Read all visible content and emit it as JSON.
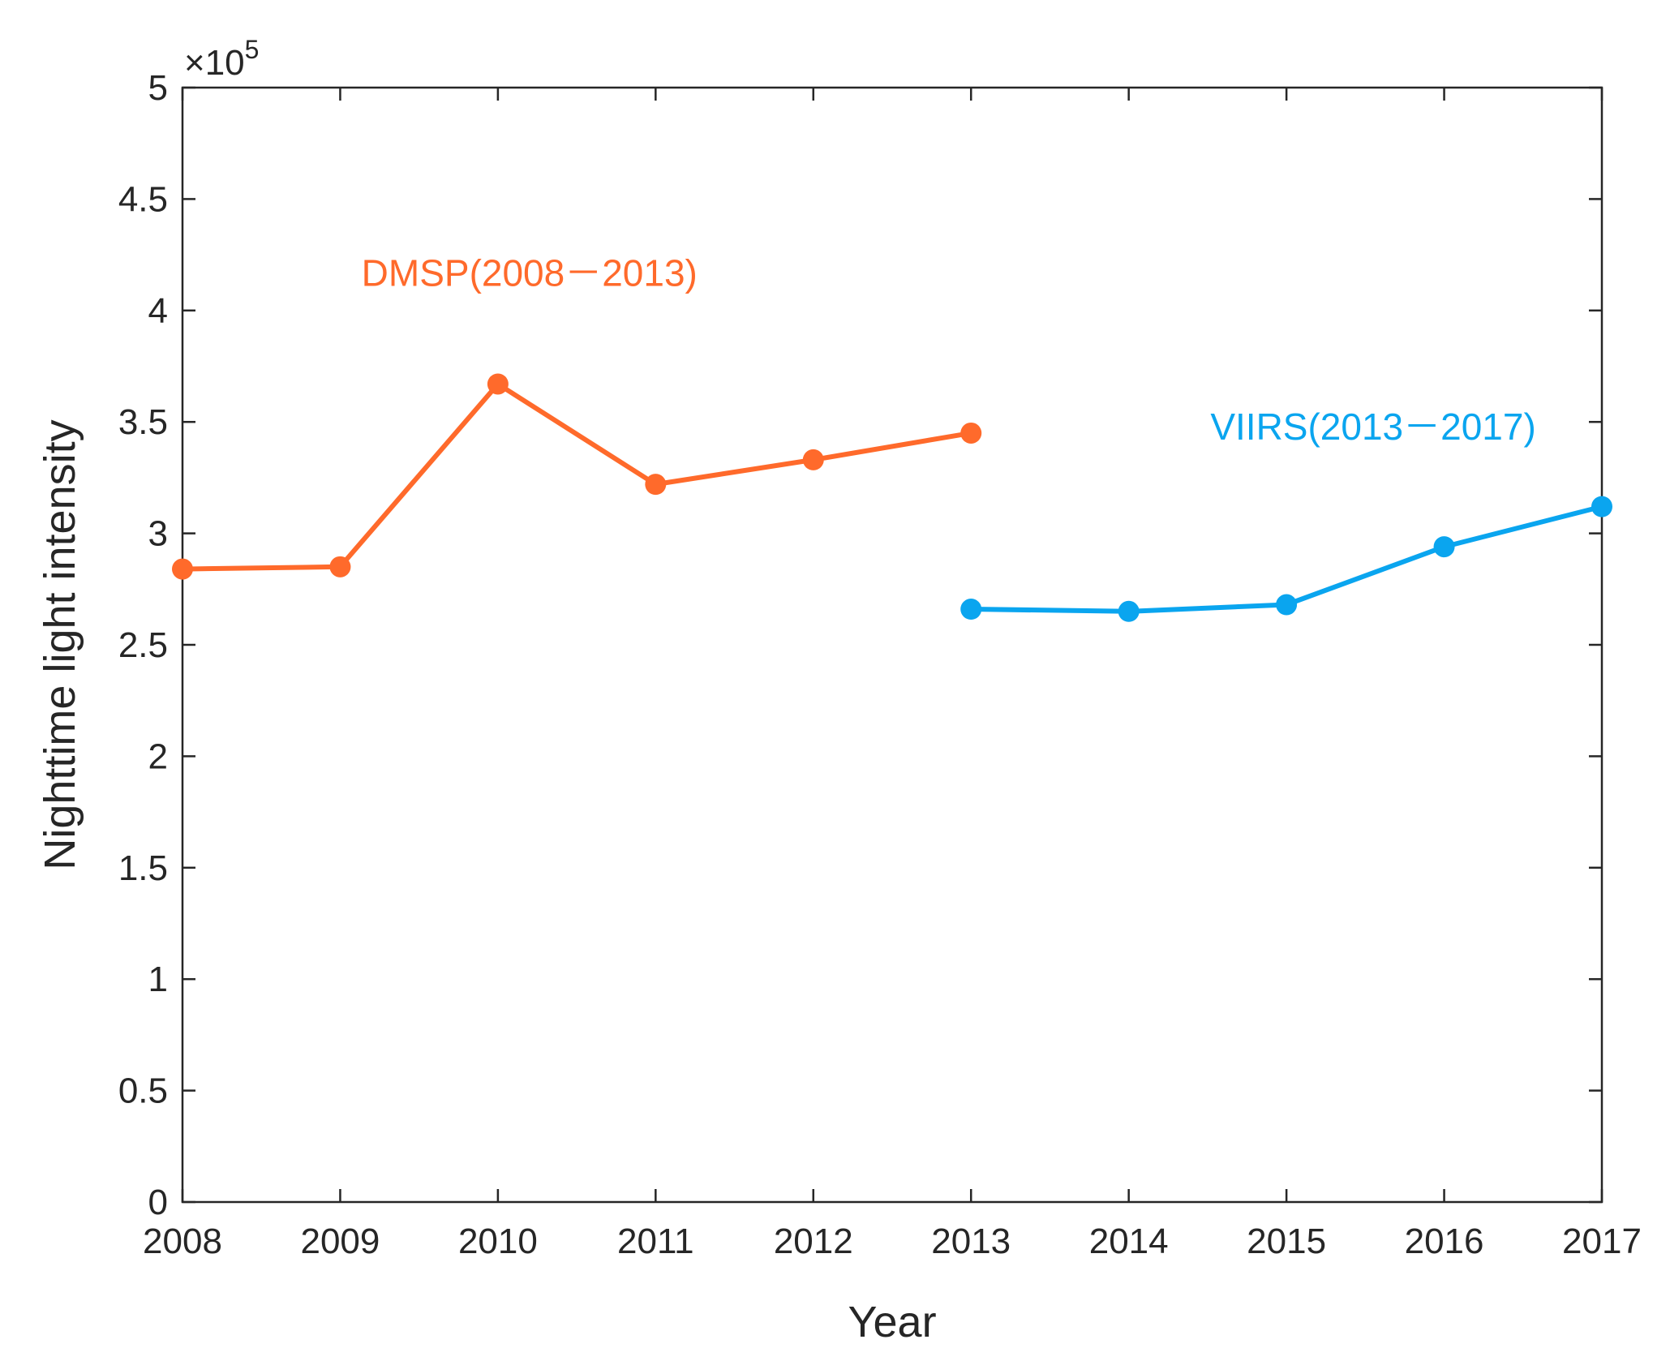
{
  "chart_data": {
    "type": "line",
    "title": "",
    "xlabel": "Year",
    "ylabel": "Nighttime light intensity",
    "y_multiplier_label": "×10",
    "y_multiplier_exponent": "5",
    "xlim": [
      2008,
      2017
    ],
    "ylim": [
      0,
      5
    ],
    "x_ticks": [
      2008,
      2009,
      2010,
      2011,
      2012,
      2013,
      2014,
      2015,
      2016,
      2017
    ],
    "x_tick_labels": [
      "2008",
      "2009",
      "2010",
      "2011",
      "2012",
      "2013",
      "2014",
      "2015",
      "2016",
      "2017"
    ],
    "y_ticks": [
      0,
      0.5,
      1,
      1.5,
      2,
      2.5,
      3,
      3.5,
      4,
      4.5,
      5
    ],
    "y_tick_labels": [
      "0",
      "0.5",
      "1",
      "1.5",
      "2",
      "2.5",
      "3",
      "3.5",
      "4",
      "4.5",
      "5"
    ],
    "grid": false,
    "series": [
      {
        "name": "DMSP(2008－2013)",
        "color": "#ff6a2b",
        "x": [
          2008,
          2009,
          2010,
          2011,
          2012,
          2013
        ],
        "values": [
          2.84,
          2.85,
          3.67,
          3.22,
          3.33,
          3.45
        ]
      },
      {
        "name": "VIIRS(2013－2017)",
        "color": "#0aa5ef",
        "x": [
          2013,
          2014,
          2015,
          2016,
          2017
        ],
        "values": [
          2.66,
          2.65,
          2.68,
          2.94,
          3.12
        ]
      }
    ],
    "annotations": [
      {
        "text": "DMSP(2008－2013)",
        "color": "#ff6a2b",
        "series_index": 0
      },
      {
        "text": "VIIRS(2013－2017)",
        "color": "#0aa5ef",
        "series_index": 1
      }
    ]
  }
}
